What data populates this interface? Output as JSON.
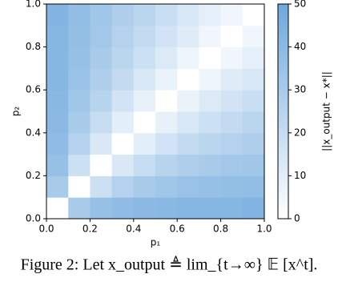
{
  "chart_data": {
    "type": "heatmap",
    "xlabel": "p₁",
    "ylabel": "p₂",
    "colorbar_label": "||x_output − x*||",
    "caption": "Figure 2: Let x_output ≜ lim_{t→∞} 𝔼 [x^t].",
    "xlim": [
      0,
      1
    ],
    "ylim": [
      0,
      1
    ],
    "xticks": [
      {
        "value": 0,
        "label": "0.0"
      },
      0.2,
      0.4,
      0.6,
      0.8,
      {
        "value": 1,
        "label": "1.0"
      }
    ],
    "yticks": [
      {
        "value": 0,
        "label": "0.0"
      },
      0.2,
      0.4,
      0.6,
      0.8,
      {
        "value": 1,
        "label": "1.0"
      }
    ],
    "clim": [
      0,
      50
    ],
    "cticks": [
      0,
      10,
      20,
      30,
      40,
      50
    ],
    "colors": [
      "#ffffff",
      "#6fa8dc"
    ],
    "z": [
      [
        0,
        30,
        36,
        39,
        40,
        41,
        42,
        42,
        42,
        43
      ],
      [
        30,
        0,
        18,
        26,
        30,
        33,
        35,
        36,
        37,
        38
      ],
      [
        36,
        18,
        0,
        13,
        20,
        25,
        28,
        30,
        32,
        33
      ],
      [
        39,
        26,
        13,
        0,
        10,
        16,
        21,
        24,
        26,
        28
      ],
      [
        40,
        30,
        20,
        10,
        0,
        8,
        14,
        18,
        21,
        24
      ],
      [
        41,
        33,
        25,
        16,
        8,
        0,
        7,
        12,
        16,
        19
      ],
      [
        42,
        35,
        28,
        21,
        14,
        7,
        0,
        6,
        11,
        14
      ],
      [
        42,
        36,
        30,
        24,
        18,
        12,
        6,
        0,
        5,
        9
      ],
      [
        42,
        37,
        32,
        26,
        21,
        16,
        11,
        5,
        0,
        5
      ],
      [
        43,
        38,
        33,
        28,
        24,
        19,
        14,
        9,
        5,
        0
      ]
    ]
  }
}
